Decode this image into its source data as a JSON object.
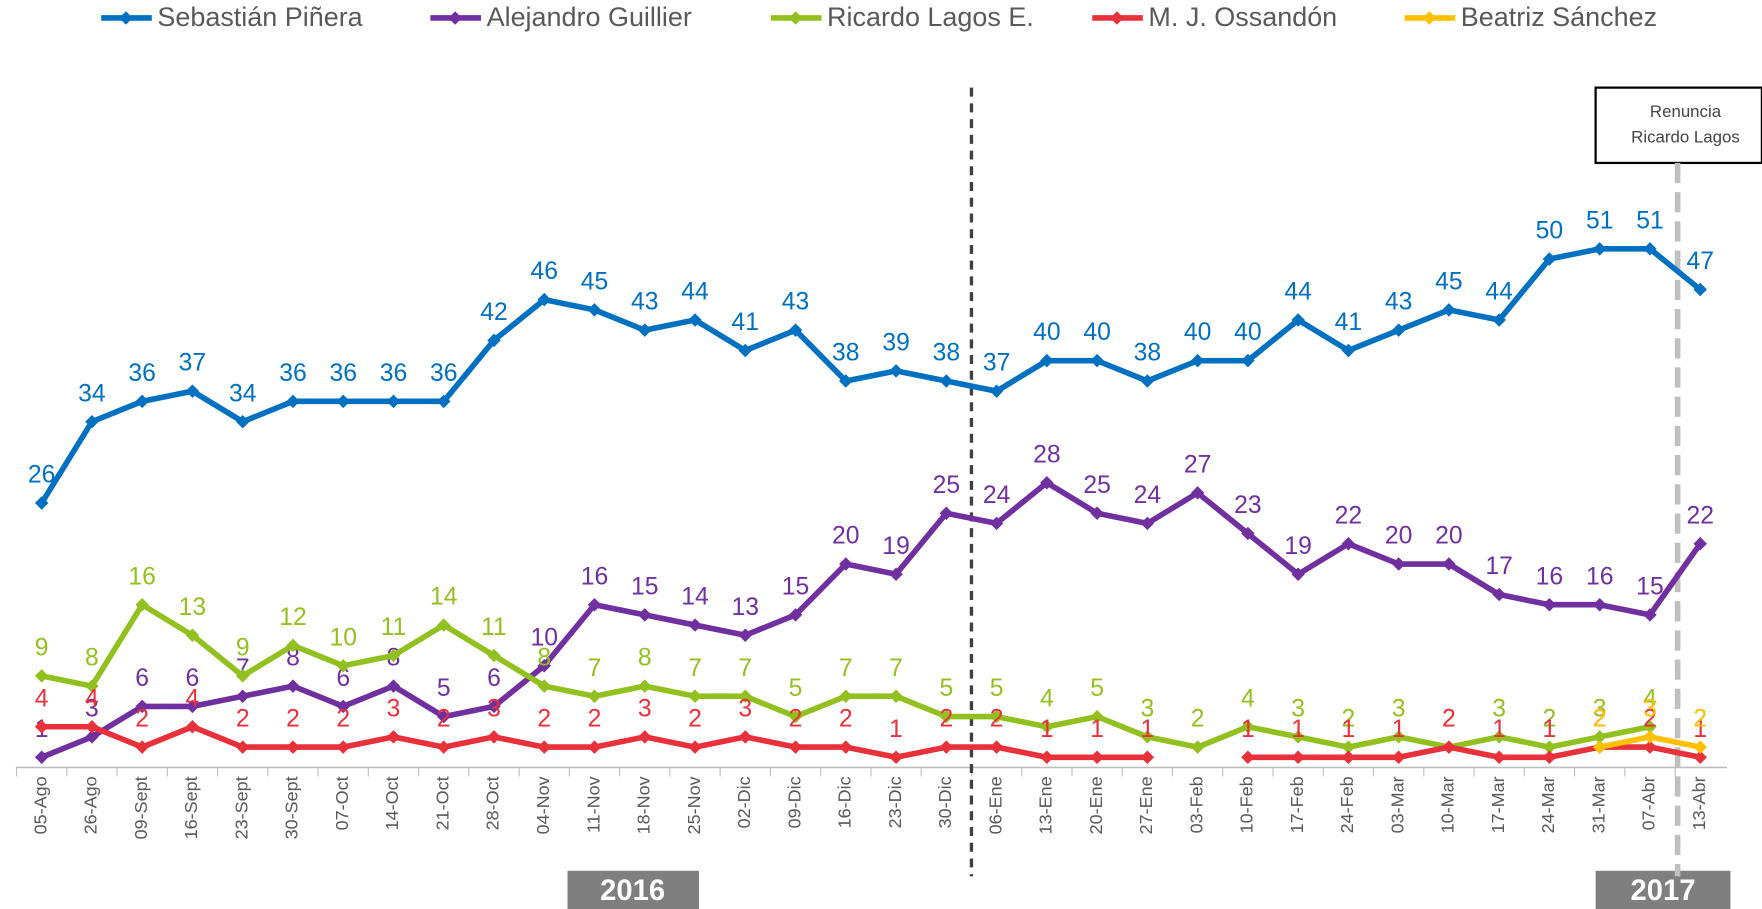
{
  "chart_data": {
    "type": "line",
    "categories": [
      "05-Ago",
      "26-Ago",
      "09-Sept",
      "16-Sept",
      "23-Sept",
      "30-Sept",
      "07-Oct",
      "14-Oct",
      "21-Oct",
      "28-Oct",
      "04-Nov",
      "11-Nov",
      "18-Nov",
      "25-Nov",
      "02-Dic",
      "09-Dic",
      "16-Dic",
      "23-Dic",
      "30-Dic",
      "06-Ene",
      "13-Ene",
      "20-Ene",
      "27-Ene",
      "03-Feb",
      "10-Feb",
      "17-Feb",
      "24-Feb",
      "03-Mar",
      "10-Mar",
      "17-Mar",
      "24-Mar",
      "31-Mar",
      "07-Abr",
      "13-Abr"
    ],
    "series": [
      {
        "name": "Sebastián Piñera",
        "color": "#0070c0",
        "values": [
          26,
          34,
          36,
          37,
          34,
          36,
          36,
          36,
          36,
          42,
          46,
          45,
          43,
          44,
          41,
          43,
          38,
          39,
          38,
          37,
          40,
          40,
          38,
          40,
          40,
          44,
          41,
          43,
          45,
          44,
          50,
          51,
          51,
          47
        ]
      },
      {
        "name": "Alejandro Guillier",
        "color": "#7030a0",
        "values": [
          1,
          3,
          6,
          6,
          7,
          8,
          6,
          8,
          5,
          6,
          10,
          16,
          15,
          14,
          13,
          15,
          20,
          19,
          25,
          24,
          28,
          25,
          24,
          27,
          23,
          19,
          22,
          20,
          20,
          17,
          16,
          16,
          15,
          22
        ]
      },
      {
        "name": "Ricardo Lagos E.",
        "color": "#92c01f",
        "values": [
          9,
          8,
          16,
          13,
          9,
          12,
          10,
          11,
          14,
          11,
          8,
          7,
          8,
          7,
          7,
          5,
          7,
          7,
          5,
          5,
          4,
          5,
          3,
          2,
          4,
          3,
          2,
          3,
          2,
          3,
          2,
          3,
          4,
          null
        ]
      },
      {
        "name": "M. J. Ossandón",
        "color": "#e8313a",
        "values": [
          4,
          4,
          2,
          4,
          2,
          2,
          2,
          3,
          2,
          3,
          2,
          2,
          3,
          2,
          3,
          2,
          2,
          1,
          2,
          2,
          1,
          1,
          1,
          null,
          1,
          1,
          1,
          1,
          2,
          1,
          1,
          2,
          2,
          1
        ]
      },
      {
        "name": "Beatriz Sánchez",
        "color": "#ffc000",
        "values": [
          null,
          null,
          null,
          null,
          null,
          null,
          null,
          null,
          null,
          null,
          null,
          null,
          null,
          null,
          null,
          null,
          null,
          null,
          null,
          null,
          null,
          null,
          null,
          null,
          null,
          null,
          null,
          null,
          null,
          null,
          null,
          2,
          3,
          2
        ]
      }
    ],
    "ylim": [
      0,
      60
    ],
    "annotation": [
      "Renuncia",
      "Ricardo Lagos"
    ],
    "year_labels": [
      "2016",
      "2017"
    ]
  }
}
